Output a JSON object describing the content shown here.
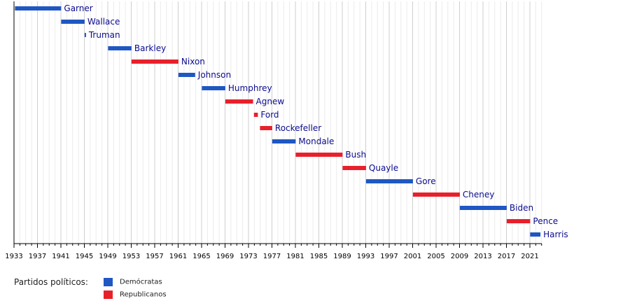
{
  "chart_data": {
    "type": "timeline",
    "x_range": [
      1933,
      2023
    ],
    "x_ticks": [
      1933,
      1937,
      1941,
      1945,
      1949,
      1953,
      1957,
      1961,
      1965,
      1969,
      1973,
      1977,
      1981,
      1985,
      1989,
      1993,
      1997,
      2001,
      2005,
      2009,
      2013,
      2017,
      2021
    ],
    "grid": true,
    "parties": {
      "dem": {
        "label": "Demócratas",
        "color": "#1f57c3"
      },
      "rep": {
        "label": "Republicanos",
        "color": "#e8202b"
      }
    },
    "items": [
      {
        "name": "Garner",
        "party": "dem",
        "start": 1933.17,
        "end": 1941.05
      },
      {
        "name": "Wallace",
        "party": "dem",
        "start": 1941.05,
        "end": 1945.05
      },
      {
        "name": "Truman",
        "party": "dem",
        "start": 1945.05,
        "end": 1945.28
      },
      {
        "name": "Barkley",
        "party": "dem",
        "start": 1949.05,
        "end": 1953.05
      },
      {
        "name": "Nixon",
        "party": "rep",
        "start": 1953.05,
        "end": 1961.05
      },
      {
        "name": "Johnson",
        "party": "dem",
        "start": 1961.05,
        "end": 1963.9
      },
      {
        "name": "Humphrey",
        "party": "dem",
        "start": 1965.05,
        "end": 1969.05
      },
      {
        "name": "Agnew",
        "party": "rep",
        "start": 1969.05,
        "end": 1973.78
      },
      {
        "name": "Ford",
        "party": "rep",
        "start": 1973.93,
        "end": 1974.6
      },
      {
        "name": "Rockefeller",
        "party": "rep",
        "start": 1974.96,
        "end": 1977.05
      },
      {
        "name": "Mondale",
        "party": "dem",
        "start": 1977.05,
        "end": 1981.05
      },
      {
        "name": "Bush",
        "party": "rep",
        "start": 1981.05,
        "end": 1989.05
      },
      {
        "name": "Quayle",
        "party": "rep",
        "start": 1989.05,
        "end": 1993.05
      },
      {
        "name": "Gore",
        "party": "dem",
        "start": 1993.05,
        "end": 2001.05
      },
      {
        "name": "Cheney",
        "party": "rep",
        "start": 2001.05,
        "end": 2009.05
      },
      {
        "name": "Biden",
        "party": "dem",
        "start": 2009.05,
        "end": 2017.05
      },
      {
        "name": "Pence",
        "party": "rep",
        "start": 2017.05,
        "end": 2021.05
      },
      {
        "name": "Harris",
        "party": "dem",
        "start": 2021.05,
        "end": 2022.8
      }
    ]
  },
  "legend": {
    "title": "Partidos políticos:",
    "items": [
      {
        "label": "Demócratas",
        "color": "#1f57c3"
      },
      {
        "label": "Republicanos",
        "color": "#e8202b"
      }
    ]
  }
}
